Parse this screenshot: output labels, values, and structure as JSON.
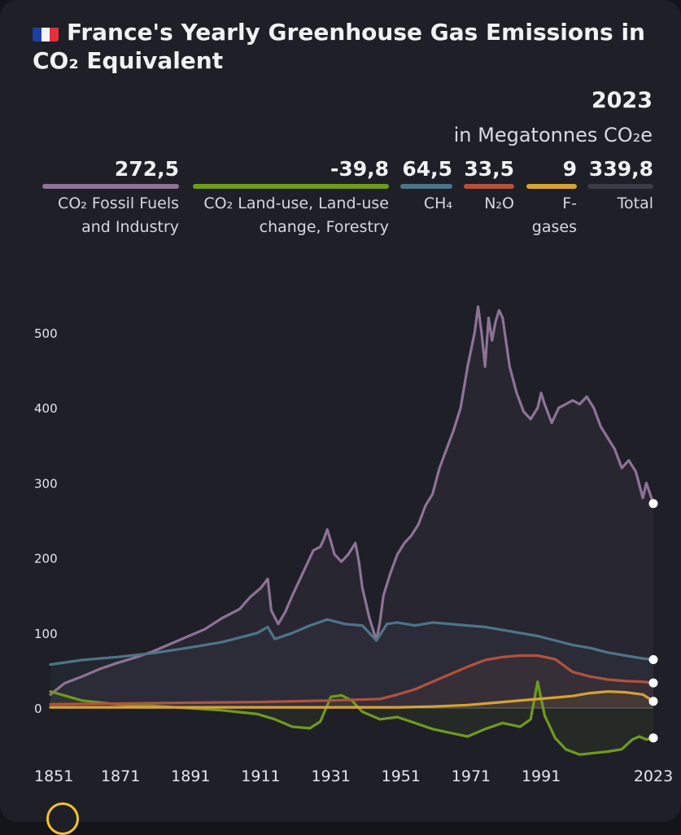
{
  "header": {
    "title": "France's Yearly Greenhouse Gas Emissions in CO₂ Equivalent",
    "flag_icon": "france-flag-icon",
    "year": "2023",
    "unit": "in Megatonnes CO₂e"
  },
  "legend": [
    {
      "key": "fossil",
      "value": "272,5",
      "name": "CO₂ Fossil Fuels and Industry",
      "color": "#8d7396"
    },
    {
      "key": "landuse",
      "value": "-39,8",
      "name": "CO₂ Land-use, Land-use change, Forestry",
      "color": "#6f9a1e"
    },
    {
      "key": "ch4",
      "value": "64,5",
      "name": "CH₄",
      "color": "#4e7488"
    },
    {
      "key": "n2o",
      "value": "33,5",
      "name": "N₂O",
      "color": "#b0533c"
    },
    {
      "key": "fgas",
      "value": "9",
      "name": "F-gases",
      "color": "#d6a235"
    },
    {
      "key": "total",
      "value": "339,8",
      "name": "Total",
      "color": "#3a3c46"
    }
  ],
  "chart_data": {
    "type": "line",
    "title": "France's Yearly Greenhouse Gas Emissions in CO₂ Equivalent",
    "ylabel": "in Megatonnes CO₂e",
    "xlim": [
      1851,
      2023
    ],
    "ylim": [
      -60,
      560
    ],
    "x_ticks": [
      "1851",
      "1871",
      "1891",
      "1911",
      "1931",
      "1951",
      "1971",
      "1991",
      "2023"
    ],
    "y_ticks": [
      "0",
      "100",
      "200",
      "300",
      "400",
      "500"
    ],
    "series": [
      {
        "name": "CO₂ Fossil Fuels and Industry",
        "color": "#8d7396",
        "points": [
          [
            1851,
            18
          ],
          [
            1855,
            33
          ],
          [
            1860,
            42
          ],
          [
            1865,
            52
          ],
          [
            1870,
            60
          ],
          [
            1875,
            67
          ],
          [
            1880,
            75
          ],
          [
            1885,
            85
          ],
          [
            1890,
            95
          ],
          [
            1895,
            105
          ],
          [
            1900,
            120
          ],
          [
            1905,
            132
          ],
          [
            1908,
            148
          ],
          [
            1911,
            160
          ],
          [
            1913,
            172
          ],
          [
            1914,
            130
          ],
          [
            1916,
            112
          ],
          [
            1918,
            128
          ],
          [
            1920,
            150
          ],
          [
            1922,
            170
          ],
          [
            1924,
            190
          ],
          [
            1926,
            210
          ],
          [
            1928,
            215
          ],
          [
            1929,
            225
          ],
          [
            1930,
            238
          ],
          [
            1931,
            222
          ],
          [
            1932,
            205
          ],
          [
            1934,
            195
          ],
          [
            1936,
            205
          ],
          [
            1938,
            220
          ],
          [
            1939,
            195
          ],
          [
            1940,
            160
          ],
          [
            1942,
            120
          ],
          [
            1944,
            90
          ],
          [
            1945,
            115
          ],
          [
            1946,
            150
          ],
          [
            1948,
            180
          ],
          [
            1950,
            205
          ],
          [
            1952,
            220
          ],
          [
            1954,
            230
          ],
          [
            1956,
            245
          ],
          [
            1958,
            270
          ],
          [
            1960,
            285
          ],
          [
            1962,
            320
          ],
          [
            1964,
            345
          ],
          [
            1966,
            370
          ],
          [
            1968,
            400
          ],
          [
            1970,
            455
          ],
          [
            1972,
            500
          ],
          [
            1973,
            535
          ],
          [
            1974,
            500
          ],
          [
            1975,
            455
          ],
          [
            1976,
            520
          ],
          [
            1977,
            490
          ],
          [
            1978,
            515
          ],
          [
            1979,
            530
          ],
          [
            1980,
            520
          ],
          [
            1982,
            455
          ],
          [
            1984,
            420
          ],
          [
            1986,
            395
          ],
          [
            1988,
            385
          ],
          [
            1990,
            400
          ],
          [
            1991,
            420
          ],
          [
            1992,
            405
          ],
          [
            1994,
            380
          ],
          [
            1996,
            400
          ],
          [
            1998,
            405
          ],
          [
            2000,
            410
          ],
          [
            2002,
            405
          ],
          [
            2004,
            415
          ],
          [
            2006,
            400
          ],
          [
            2008,
            375
          ],
          [
            2010,
            360
          ],
          [
            2012,
            345
          ],
          [
            2014,
            320
          ],
          [
            2016,
            330
          ],
          [
            2018,
            315
          ],
          [
            2020,
            280
          ],
          [
            2021,
            300
          ],
          [
            2023,
            272.5
          ]
        ]
      },
      {
        "name": "CO₂ Land-use, Land-use change, Forestry",
        "color": "#6f9a1e",
        "points": [
          [
            1851,
            22
          ],
          [
            1860,
            10
          ],
          [
            1870,
            5
          ],
          [
            1880,
            3
          ],
          [
            1890,
            0
          ],
          [
            1900,
            -3
          ],
          [
            1910,
            -8
          ],
          [
            1915,
            -15
          ],
          [
            1920,
            -25
          ],
          [
            1925,
            -27
          ],
          [
            1928,
            -18
          ],
          [
            1931,
            15
          ],
          [
            1934,
            17
          ],
          [
            1937,
            10
          ],
          [
            1940,
            -5
          ],
          [
            1945,
            -15
          ],
          [
            1950,
            -12
          ],
          [
            1955,
            -20
          ],
          [
            1960,
            -28
          ],
          [
            1965,
            -33
          ],
          [
            1970,
            -38
          ],
          [
            1975,
            -28
          ],
          [
            1980,
            -20
          ],
          [
            1985,
            -25
          ],
          [
            1988,
            -15
          ],
          [
            1990,
            35
          ],
          [
            1992,
            -10
          ],
          [
            1995,
            -40
          ],
          [
            1998,
            -55
          ],
          [
            2002,
            -62
          ],
          [
            2006,
            -60
          ],
          [
            2010,
            -58
          ],
          [
            2014,
            -55
          ],
          [
            2017,
            -42
          ],
          [
            2019,
            -38
          ],
          [
            2021,
            -42
          ],
          [
            2023,
            -39.8
          ]
        ]
      },
      {
        "name": "CH₄",
        "color": "#4e7488",
        "points": [
          [
            1851,
            58
          ],
          [
            1860,
            64
          ],
          [
            1870,
            68
          ],
          [
            1880,
            73
          ],
          [
            1890,
            80
          ],
          [
            1900,
            88
          ],
          [
            1910,
            100
          ],
          [
            1913,
            108
          ],
          [
            1915,
            92
          ],
          [
            1920,
            100
          ],
          [
            1925,
            110
          ],
          [
            1930,
            118
          ],
          [
            1935,
            112
          ],
          [
            1940,
            110
          ],
          [
            1944,
            90
          ],
          [
            1947,
            112
          ],
          [
            1950,
            114
          ],
          [
            1955,
            110
          ],
          [
            1960,
            114
          ],
          [
            1965,
            112
          ],
          [
            1970,
            110
          ],
          [
            1975,
            108
          ],
          [
            1980,
            104
          ],
          [
            1985,
            100
          ],
          [
            1990,
            96
          ],
          [
            1995,
            90
          ],
          [
            2000,
            84
          ],
          [
            2005,
            80
          ],
          [
            2010,
            74
          ],
          [
            2015,
            70
          ],
          [
            2020,
            66
          ],
          [
            2023,
            64.5
          ]
        ]
      },
      {
        "name": "N₂O",
        "color": "#b0533c",
        "points": [
          [
            1851,
            5
          ],
          [
            1870,
            6
          ],
          [
            1890,
            7
          ],
          [
            1910,
            8
          ],
          [
            1930,
            10
          ],
          [
            1945,
            12
          ],
          [
            1950,
            18
          ],
          [
            1955,
            25
          ],
          [
            1960,
            35
          ],
          [
            1965,
            45
          ],
          [
            1970,
            55
          ],
          [
            1975,
            64
          ],
          [
            1980,
            68
          ],
          [
            1985,
            70
          ],
          [
            1990,
            70
          ],
          [
            1995,
            65
          ],
          [
            2000,
            48
          ],
          [
            2005,
            42
          ],
          [
            2010,
            38
          ],
          [
            2015,
            36
          ],
          [
            2020,
            35
          ],
          [
            2023,
            33.5
          ]
        ]
      },
      {
        "name": "F-gases",
        "color": "#d6a235",
        "points": [
          [
            1851,
            1
          ],
          [
            1900,
            1
          ],
          [
            1950,
            1
          ],
          [
            1960,
            2
          ],
          [
            1970,
            4
          ],
          [
            1980,
            8
          ],
          [
            1990,
            12
          ],
          [
            1995,
            14
          ],
          [
            2000,
            16
          ],
          [
            2005,
            20
          ],
          [
            2010,
            22
          ],
          [
            2015,
            21
          ],
          [
            2020,
            18
          ],
          [
            2023,
            9
          ]
        ]
      }
    ]
  }
}
